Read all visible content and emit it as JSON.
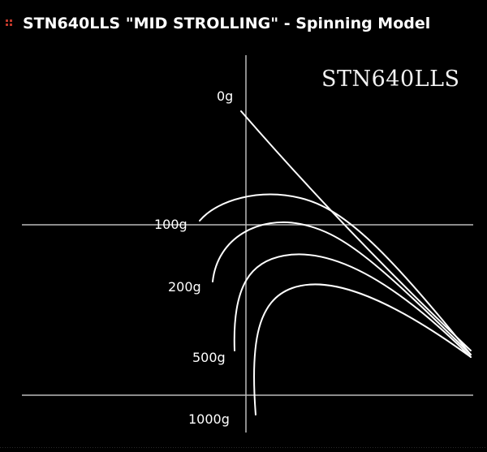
{
  "header": {
    "title": "STN640LLS \"MID STROLLING\" - Spinning Model",
    "icon": "grid-dots-icon",
    "icon_color": "#c0392b"
  },
  "diagram": {
    "model_label": "STN640LLS",
    "load_labels": [
      "0g",
      "100g",
      "200g",
      "500g",
      "1000g"
    ],
    "line_color": "#ffffff",
    "grid_color": "#bbbbbb"
  }
}
